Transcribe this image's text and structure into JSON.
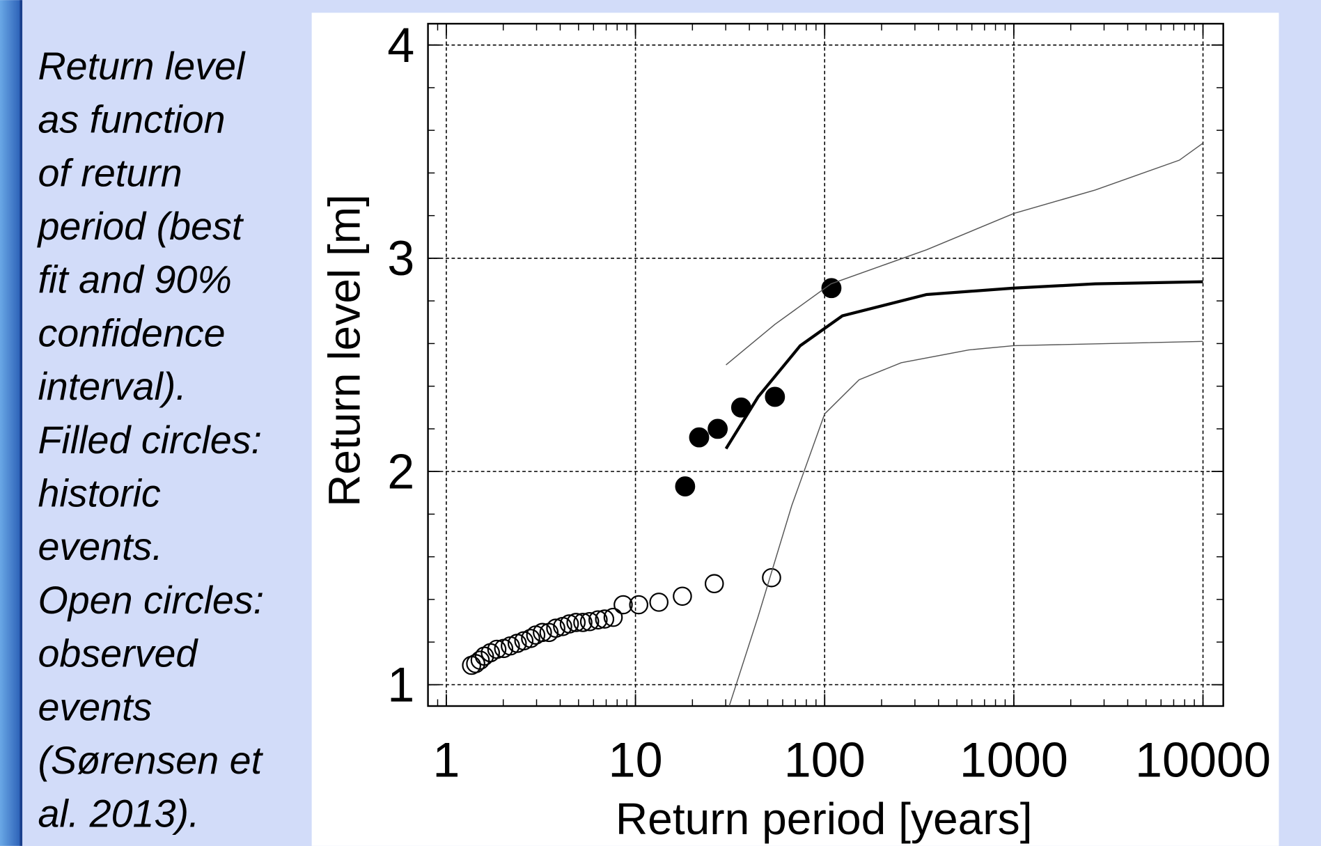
{
  "caption": [
    "Return level",
    "as function",
    "of return",
    "period (best",
    "fit and 90%",
    "confidence",
    "interval).",
    "Filled circles:",
    "historic",
    "events.",
    "Open circles:",
    "observed",
    "events",
    "(Sørensen et",
    "al. 2013)."
  ],
  "chart_data": {
    "type": "scatter",
    "xlabel": "Return period [years]",
    "ylabel": "Return level [m]",
    "xscale": "log",
    "xlim": [
      0.8,
      12800
    ],
    "ylim": [
      0.9,
      4.1
    ],
    "xticks": [
      1,
      10,
      100,
      1000,
      10000
    ],
    "yticks": [
      1,
      2,
      3,
      4
    ],
    "grid": true,
    "series": [
      {
        "mode": "markers",
        "fill": true,
        "color": "#000000",
        "x": [
          18.3,
          21.7,
          27.2,
          36.2,
          54.6,
          108.6
        ],
        "values": [
          1.93,
          2.16,
          2.2,
          2.3,
          2.35,
          2.86
        ]
      },
      {
        "mode": "markers",
        "fill": false,
        "color": "#000000",
        "x": [
          1.36,
          1.43,
          1.51,
          1.59,
          1.71,
          1.85,
          2.01,
          2.18,
          2.37,
          2.57,
          2.79,
          2.97,
          3.22,
          3.49,
          3.79,
          4.12,
          4.47,
          4.85,
          5.27,
          5.72,
          6.34,
          6.87,
          7.62,
          8.61,
          10.4,
          13.3,
          17.7,
          26.1,
          52.4
        ],
        "values": [
          1.091,
          1.099,
          1.115,
          1.134,
          1.15,
          1.166,
          1.17,
          1.182,
          1.194,
          1.206,
          1.217,
          1.233,
          1.245,
          1.245,
          1.265,
          1.273,
          1.285,
          1.292,
          1.292,
          1.296,
          1.304,
          1.308,
          1.316,
          1.375,
          1.375,
          1.387,
          1.415,
          1.474,
          1.502
        ]
      },
      {
        "mode": "line",
        "color": "#000000",
        "width": 3.5,
        "x": [
          30.1,
          44.5,
          74.3,
          124,
          346,
          1000,
          2690,
          10000
        ],
        "values": [
          2.107,
          2.35,
          2.59,
          2.73,
          2.83,
          2.86,
          2.88,
          2.89
        ]
      },
      {
        "mode": "line",
        "color": "#555555",
        "width": 1.2,
        "x": [
          30.1,
          54.6,
          108,
          346,
          1000,
          2690,
          7500,
          10000
        ],
        "values": [
          2.5,
          2.69,
          2.88,
          3.04,
          3.21,
          3.32,
          3.46,
          3.54
        ]
      },
      {
        "mode": "line",
        "color": "#555555",
        "width": 1.2,
        "x": [
          31.3,
          44.5,
          67,
          100,
          152,
          254,
          578,
          1000,
          10000
        ],
        "values": [
          0.9,
          1.32,
          1.84,
          2.27,
          2.43,
          2.51,
          2.57,
          2.59,
          2.61
        ]
      }
    ]
  }
}
